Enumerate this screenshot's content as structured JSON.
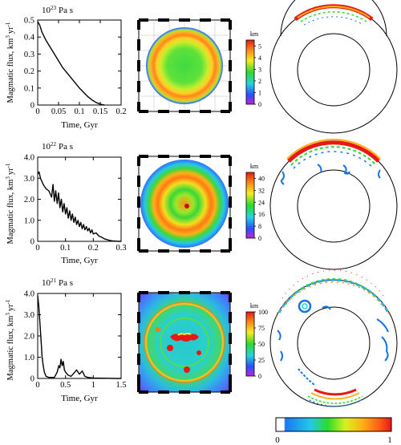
{
  "chart_data": [
    {
      "type": "line",
      "title_base": "10",
      "title_exp": "23",
      "title_unit": "Pa s",
      "xlabel": "Time, Gyr",
      "ylabel": "Magmatic flux, km",
      "ylabel_exp": "3",
      "ylabel_unit": "yr",
      "ylabel_unit_exp": "-1",
      "xlim": [
        0,
        0.2
      ],
      "ylim": [
        0,
        0.5
      ],
      "xticks": [
        "0",
        "0.05",
        "0.1",
        "0.15",
        "0.2"
      ],
      "xtick_values": [
        0,
        0.05,
        0.1,
        0.15,
        0.2
      ],
      "yticks": [
        "0",
        "0.1",
        "0.2",
        "0.3",
        "0.4",
        "0.5"
      ],
      "ytick_values": [
        0,
        0.1,
        0.2,
        0.3,
        0.4,
        0.5
      ],
      "x": [
        0.0,
        0.005,
        0.01,
        0.02,
        0.03,
        0.04,
        0.05,
        0.06,
        0.07,
        0.08,
        0.09,
        0.1,
        0.11,
        0.12,
        0.13,
        0.14,
        0.15,
        0.155,
        0.16
      ],
      "y": [
        0.49,
        0.47,
        0.43,
        0.38,
        0.34,
        0.3,
        0.26,
        0.22,
        0.19,
        0.16,
        0.13,
        0.1,
        0.075,
        0.05,
        0.03,
        0.015,
        0.005,
        0.002,
        0.0
      ],
      "map_colorbar": {
        "label": "km",
        "ticks": [
          "0",
          "1",
          "2",
          "3",
          "4",
          "5"
        ],
        "range": [
          0,
          5.5
        ]
      }
    },
    {
      "type": "line",
      "title_base": "10",
      "title_exp": "22",
      "title_unit": "Pa s",
      "xlabel": "Time, Gyr",
      "ylabel": "Magmatic flux, km",
      "ylabel_exp": "3",
      "ylabel_unit": "yr",
      "ylabel_unit_exp": "-1",
      "xlim": [
        0,
        0.3
      ],
      "ylim": [
        0,
        4.0
      ],
      "xticks": [
        "0",
        "0.1",
        "0.2",
        "0.3"
      ],
      "xtick_values": [
        0,
        0.1,
        0.2,
        0.3
      ],
      "yticks": [
        "0",
        "1.0",
        "2.0",
        "3.0",
        "4.0"
      ],
      "ytick_values": [
        0,
        1,
        2,
        3,
        4
      ],
      "x": [
        0.0,
        0.005,
        0.01,
        0.02,
        0.03,
        0.04,
        0.05,
        0.055,
        0.06,
        0.065,
        0.07,
        0.075,
        0.08,
        0.085,
        0.09,
        0.095,
        0.1,
        0.105,
        0.11,
        0.115,
        0.12,
        0.125,
        0.13,
        0.135,
        0.14,
        0.145,
        0.15,
        0.155,
        0.16,
        0.165,
        0.17,
        0.175,
        0.18,
        0.185,
        0.19,
        0.195,
        0.2,
        0.21,
        0.22,
        0.23,
        0.24,
        0.25,
        0.26,
        0.27,
        0.28,
        0.29,
        0.3
      ],
      "y": [
        3.2,
        3.3,
        3.0,
        2.7,
        2.5,
        2.4,
        2.1,
        2.7,
        1.9,
        2.4,
        1.8,
        2.3,
        1.6,
        2.0,
        1.4,
        1.8,
        1.3,
        1.6,
        1.1,
        1.45,
        1.0,
        1.3,
        0.9,
        1.15,
        0.8,
        1.0,
        0.7,
        0.9,
        0.6,
        0.8,
        0.55,
        0.7,
        0.5,
        0.62,
        0.4,
        0.55,
        0.35,
        0.4,
        0.25,
        0.2,
        0.12,
        0.08,
        0.04,
        0.02,
        0.01,
        0.0,
        0.0
      ],
      "map_colorbar": {
        "label": "km",
        "ticks": [
          "0",
          "8",
          "16",
          "24",
          "32",
          "40"
        ],
        "range": [
          0,
          44
        ]
      }
    },
    {
      "type": "line",
      "title_base": "10",
      "title_exp": "21",
      "title_unit": "Pa s",
      "xlabel": "Time, Gyr",
      "ylabel": "Magmatic flux, km",
      "ylabel_exp": "3",
      "ylabel_unit": "yr",
      "ylabel_unit_exp": "-1",
      "xlim": [
        0,
        1.5
      ],
      "ylim": [
        0,
        4.0
      ],
      "xticks": [
        "0",
        "0.5",
        "1",
        "1.5"
      ],
      "xtick_values": [
        0,
        0.5,
        1,
        1.5
      ],
      "yticks": [
        "0",
        "1.0",
        "2.0",
        "3.0",
        "4.0"
      ],
      "ytick_values": [
        0,
        1,
        2,
        3,
        4
      ],
      "x": [
        0.0,
        0.02,
        0.04,
        0.06,
        0.08,
        0.1,
        0.12,
        0.15,
        0.2,
        0.25,
        0.3,
        0.35,
        0.38,
        0.4,
        0.42,
        0.44,
        0.46,
        0.48,
        0.5,
        0.55,
        0.6,
        0.65,
        0.7,
        0.75,
        0.8,
        0.85,
        0.9,
        1.0,
        1.2,
        1.4,
        1.5
      ],
      "y": [
        3.9,
        3.4,
        2.6,
        1.8,
        1.0,
        0.6,
        0.3,
        0.1,
        0.05,
        0.05,
        0.05,
        0.3,
        0.6,
        0.5,
        0.9,
        0.6,
        0.8,
        0.4,
        0.3,
        0.15,
        0.1,
        0.25,
        0.4,
        0.2,
        0.35,
        0.1,
        0.05,
        0.02,
        0.01,
        0.0,
        0.0
      ],
      "map_colorbar": {
        "label": "km",
        "ticks": [
          "0",
          "25",
          "50",
          "75",
          "100"
        ],
        "range": [
          0,
          100
        ]
      }
    }
  ],
  "global_colorbar": {
    "min_label": "0",
    "max_label": "1"
  },
  "colors": {
    "line": "#000000",
    "white": "#ffffff",
    "light_blue": "#2aa8f0",
    "blue": "#1473e6",
    "cyan": "#22d6e0",
    "green": "#2bdc2a",
    "yellow": "#f7ec1e",
    "orange": "#ff8a14",
    "red": "#e81818",
    "magenta": "#b31cd6"
  }
}
